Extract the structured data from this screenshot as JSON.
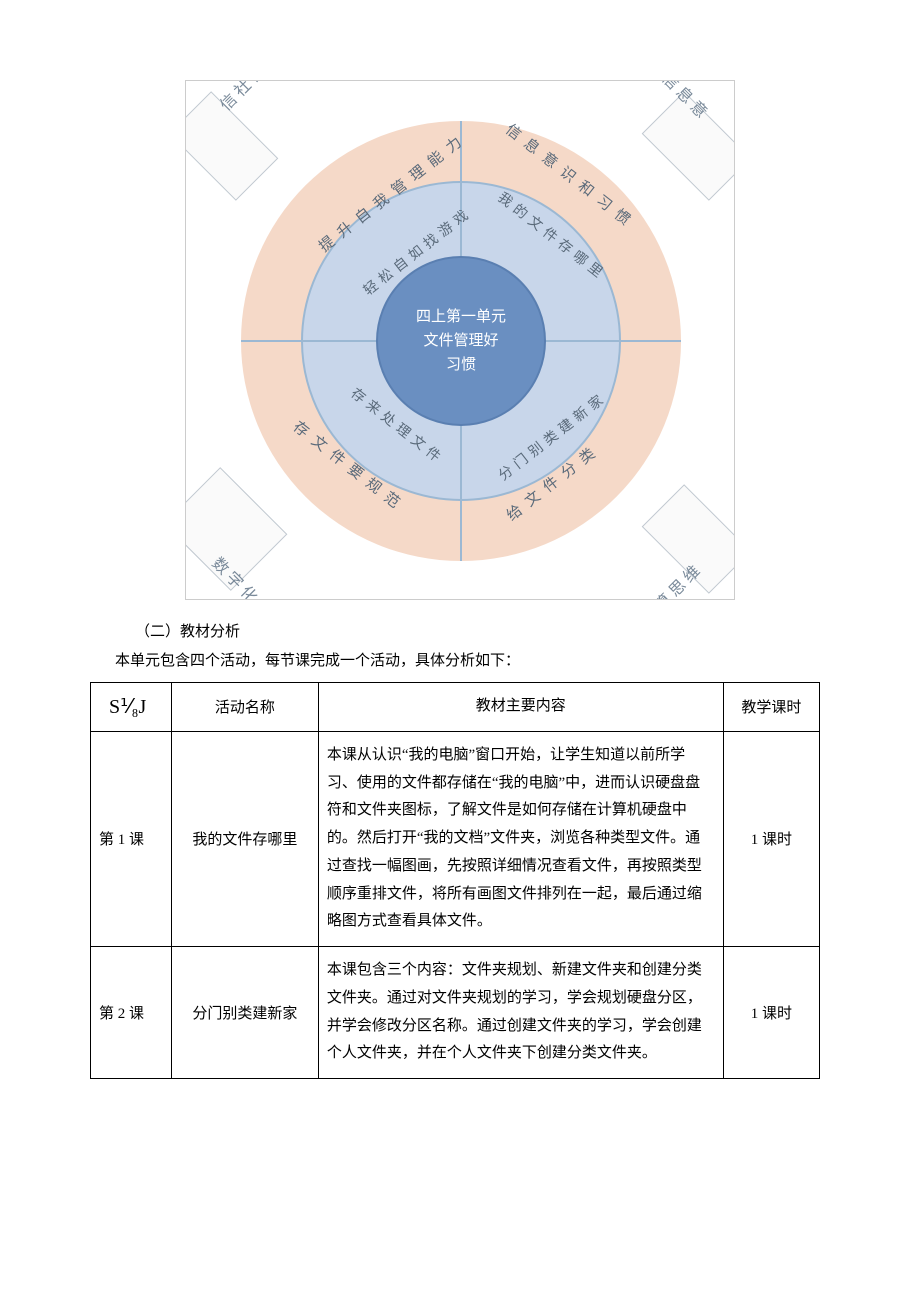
{
  "diagram": {
    "center": {
      "line1": "四上第一单元",
      "line2": "文件管理好",
      "line3": "习惯"
    },
    "center_bg": "#6a8fc1",
    "mid_ring_bg": "#c8d6ea",
    "outer_ring_bg": "#f5d9c8",
    "corner_labels": {
      "tl": "信社会责任",
      "tr": "信息意",
      "bl": "数字化学习与创新",
      "br": "计算思维"
    },
    "outer_arcs": {
      "tl": "提升自我管理能力",
      "tr": "信息意识和习惯",
      "bl": "存文件要规范",
      "br": "给文件分类"
    },
    "mid_arcs": {
      "tl": "轻松自如找游戏",
      "tr": "我的文件存哪里",
      "bl": "存来处理文件",
      "br": "分门别类建新家"
    }
  },
  "section_heading": "（二）教材分析",
  "intro": "本单元包含四个活动，每节课完成一个活动，具体分析如下：",
  "table": {
    "headers": {
      "c1": "S⅟₈J",
      "c2": "活动名称",
      "c3": "教材主要内容",
      "c4": "教学课时"
    },
    "rows": [
      {
        "lesson": "第 1 课",
        "name": "我的文件存哪里",
        "content": "本课从认识“我的电脑”窗口开始，让学生知道以前所学习、使用的文件都存储在“我的电脑”中，进而认识硬盘盘符和文件夹图标，了解文件是如何存储在计算机硬盘中的。然后打开“我的文档”文件夹，浏览各种类型文件。通过查找一幅图画，先按照详细情况查看文件，再按照类型顺序重排文件，将所有画图文件排列在一起，最后通过缩略图方式查看具体文件。",
        "hours": "1 课时"
      },
      {
        "lesson": "第 2 课",
        "name": "分门别类建新家",
        "content": "本课包含三个内容：文件夹规划、新建文件夹和创建分类文件夹。通过对文件夹规划的学习，学会规划硬盘分区，并学会修改分区名称。通过创建文件夹的学习，学会创建个人文件夹，并在个人文件夹下创建分类文件夹。",
        "hours": "1 课时"
      }
    ]
  }
}
